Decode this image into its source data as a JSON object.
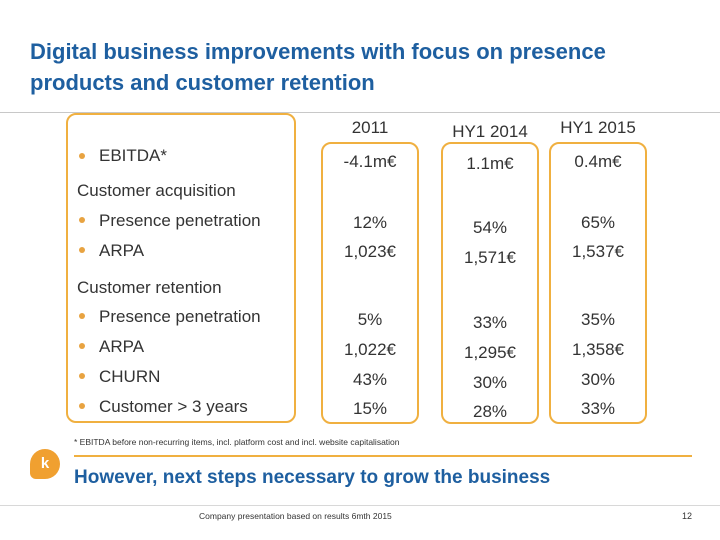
{
  "title": "Digital business improvements with focus on presence products and customer retention",
  "columns": [
    "2011",
    "HY1 2014",
    "HY1 2015"
  ],
  "ebitda": {
    "label": "EBITDA*",
    "values": [
      "-4.1m€",
      "1.1m€",
      "0.4m€"
    ]
  },
  "acquisition": {
    "heading": "Customer acquisition",
    "items": [
      "Presence  penetration",
      "ARPA"
    ],
    "values": [
      [
        "12%",
        "1,023€"
      ],
      [
        "54%",
        "1,571€"
      ],
      [
        "65%",
        "1,537€"
      ]
    ]
  },
  "retention": {
    "heading": "Customer retention",
    "items": [
      "Presence penetration",
      "ARPA",
      "CHURN",
      "Customer > 3 years"
    ],
    "values": [
      [
        "5%",
        "1,022€",
        "43%",
        "15%"
      ],
      [
        "33%",
        "1,295€",
        "30%",
        "28%"
      ],
      [
        "35%",
        "1,358€",
        "30%",
        "33%"
      ]
    ]
  },
  "footnote": "* EBITDA before non-recurring items, incl. platform cost and incl. website capitalisation",
  "logo_letter": "k",
  "conclusion": "However, next steps necessary to grow the business",
  "caption": "Company presentation based on results 6mth 2015",
  "page_number": "12",
  "colors": {
    "title": "#1e5fa0",
    "accent": "#f0b040",
    "bullet": "#e8a341"
  }
}
